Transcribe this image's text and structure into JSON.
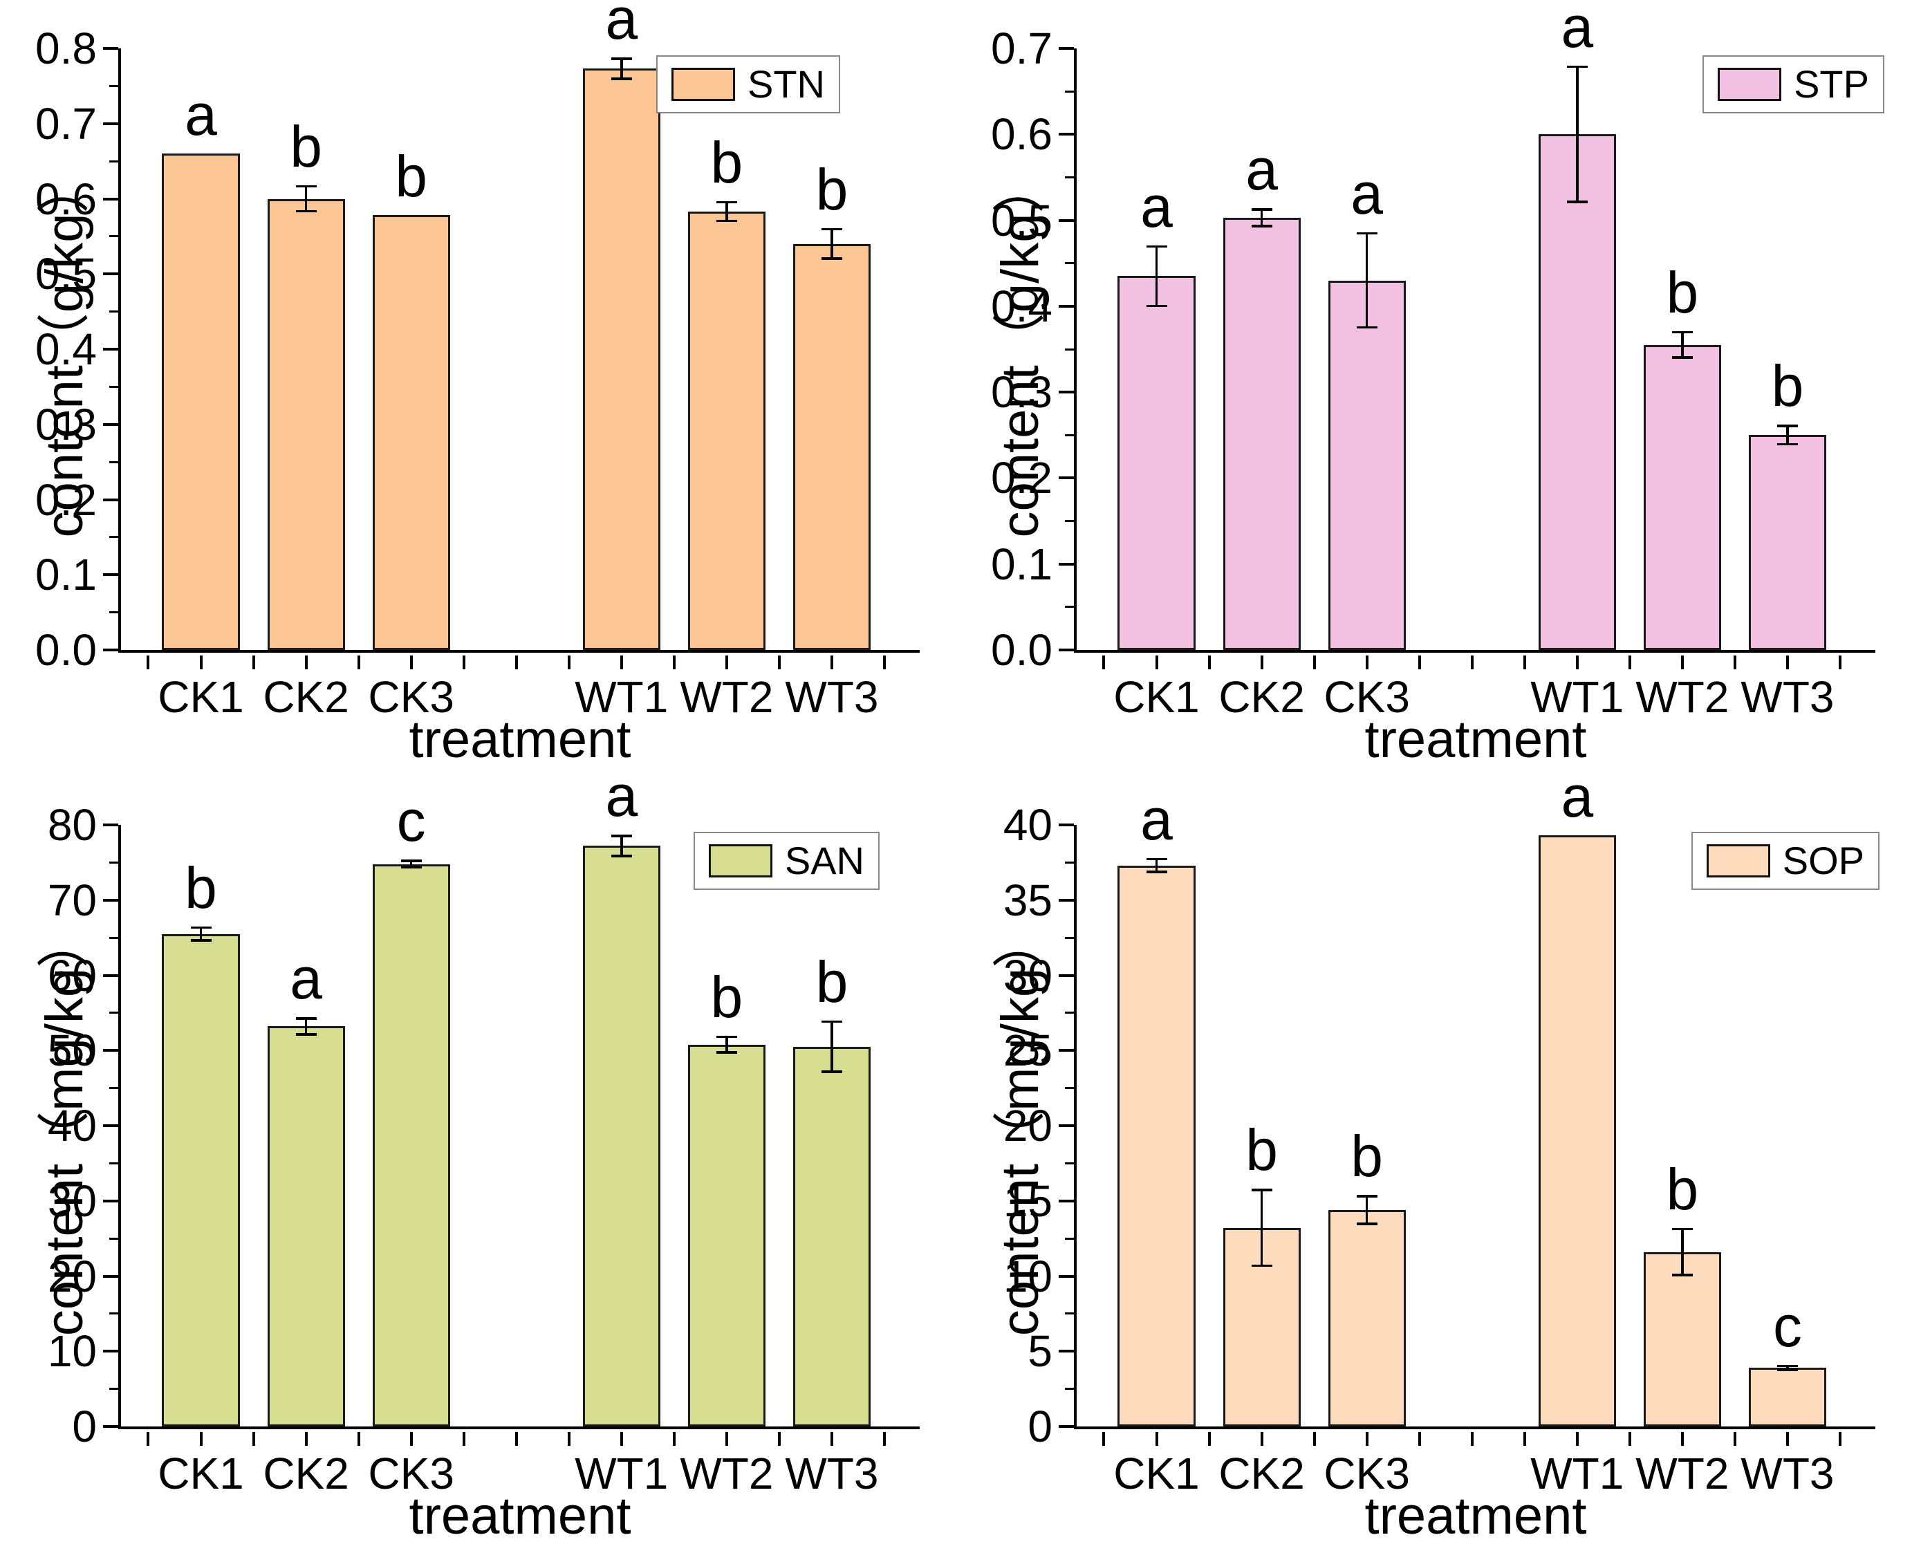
{
  "chart_data": [
    {
      "type": "bar",
      "legend": "STN",
      "bar_color": "#FBC693",
      "categories": [
        "CK1",
        "CK2",
        "CK3",
        "WT1",
        "WT2",
        "WT3"
      ],
      "values": [
        0.66,
        0.6,
        0.578,
        0.773,
        0.583,
        0.54
      ],
      "errors": [
        0,
        0.018,
        0,
        0.015,
        0.014,
        0.021
      ],
      "sig_letters": [
        "a",
        "b",
        "b",
        "a",
        "b",
        "b"
      ],
      "xlabel": "treatment",
      "ylabel": "content（g/kg）",
      "ylim": [
        0,
        0.8
      ],
      "ytick_step": 0.1,
      "y_decimals": 1,
      "grid": false,
      "legend_position": "top-right"
    },
    {
      "type": "bar",
      "legend": "STP",
      "bar_color": "#F2C0E0",
      "categories": [
        "CK1",
        "CK2",
        "CK3",
        "WT1",
        "WT2",
        "WT3"
      ],
      "values": [
        0.435,
        0.503,
        0.43,
        0.6,
        0.355,
        0.25
      ],
      "errors": [
        0.036,
        0.011,
        0.056,
        0.08,
        0.016,
        0.012
      ],
      "sig_letters": [
        "a",
        "a",
        "a",
        "a",
        "b",
        "b"
      ],
      "xlabel": "treatment",
      "ylabel": "content（g/kg）",
      "ylim": [
        0,
        0.7
      ],
      "ytick_step": 0.1,
      "y_decimals": 1,
      "grid": false,
      "legend_position": "top-right"
    },
    {
      "type": "bar",
      "legend": "SAN",
      "bar_color": "#D7DD91",
      "categories": [
        "CK1",
        "CK2",
        "CK3",
        "WT1",
        "WT2",
        "WT3"
      ],
      "values": [
        65.5,
        53.2,
        74.8,
        77.2,
        50.8,
        50.5
      ],
      "errors": [
        1.0,
        1.2,
        0.6,
        1.5,
        1.2,
        3.5
      ],
      "sig_letters": [
        "b",
        "a",
        "c",
        "a",
        "b",
        "b"
      ],
      "xlabel": "treatment",
      "ylabel": "content（mg/kg）",
      "ylim": [
        0,
        80
      ],
      "ytick_step": 10,
      "y_decimals": 0,
      "grid": false,
      "legend_position": "top-right"
    },
    {
      "type": "bar",
      "legend": "SOP",
      "bar_color": "#FDDCBE",
      "categories": [
        "CK1",
        "CK2",
        "CK3",
        "WT1",
        "WT2",
        "WT3"
      ],
      "values": [
        37.3,
        13.2,
        14.4,
        39.3,
        11.6,
        3.9
      ],
      "errors": [
        0.5,
        2.6,
        1.0,
        0,
        1.6,
        0.2
      ],
      "sig_letters": [
        "a",
        "b",
        "b",
        "a",
        "b",
        "c"
      ],
      "xlabel": "treatment",
      "ylabel": "content（mg/kg）",
      "ylim": [
        0,
        40
      ],
      "ytick_step": 5,
      "y_decimals": 0,
      "grid": false,
      "legend_position": "top-right"
    }
  ]
}
